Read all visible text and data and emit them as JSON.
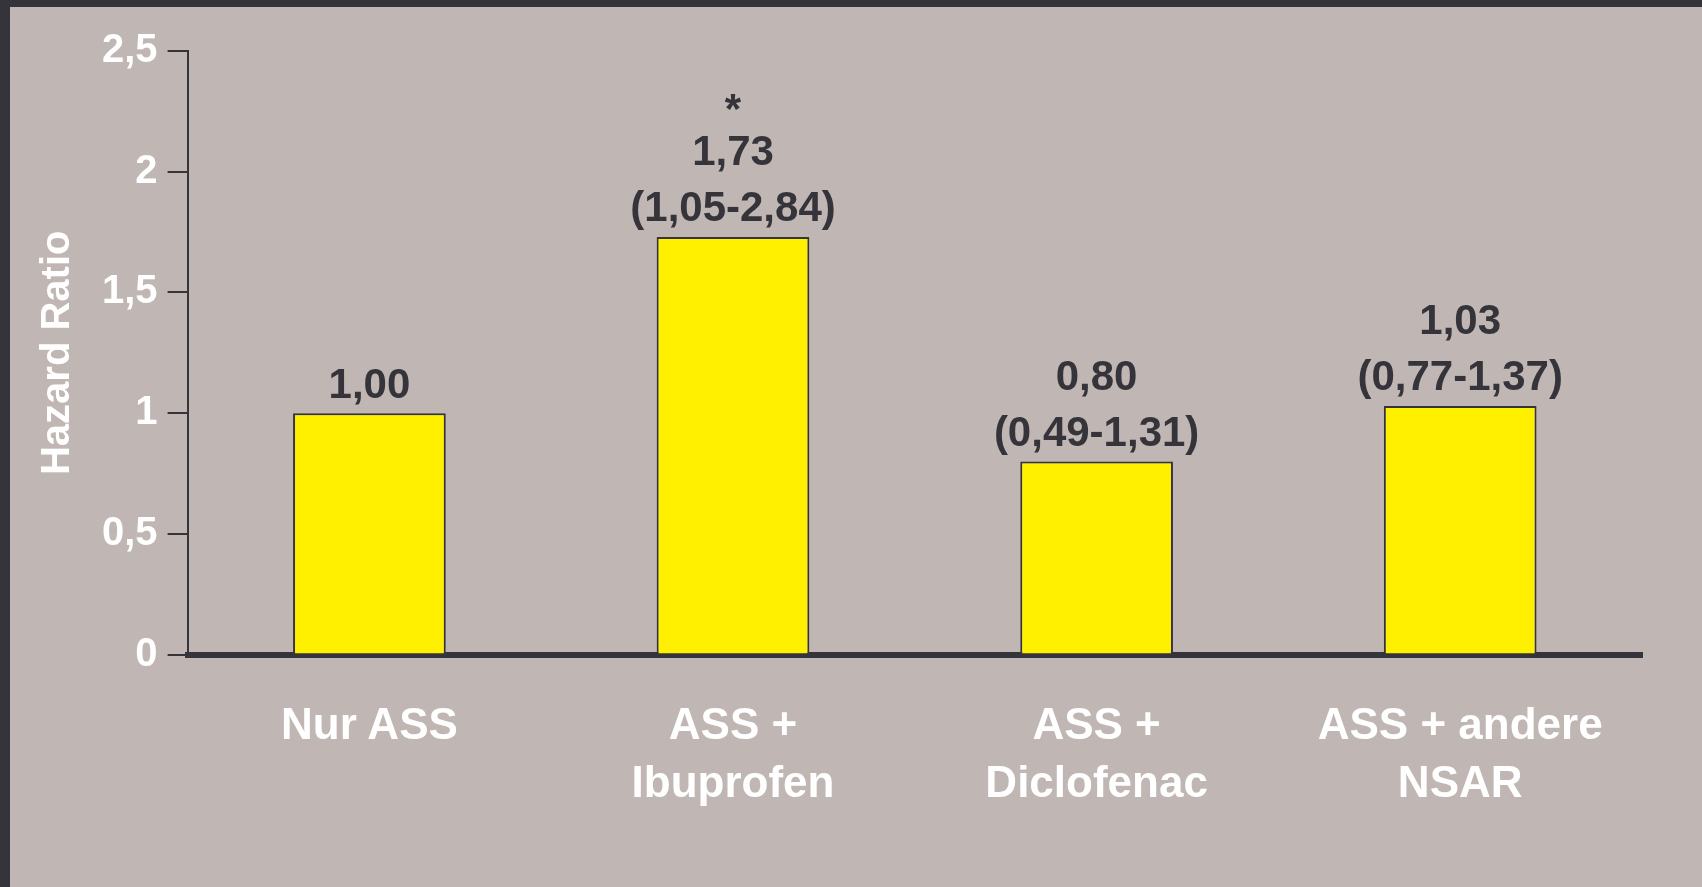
{
  "chart_data": {
    "type": "bar",
    "ylabel": "Hazard Ratio",
    "categories": [
      "Nur ASS",
      "ASS + Ibuprofen",
      "ASS + Diclofenac",
      "ASS + andere NSAR"
    ],
    "values": [
      1.0,
      1.73,
      0.8,
      1.03
    ],
    "color": "#fff000",
    "value_labels": [
      "1,00",
      "1,73",
      "0,80",
      "1,03"
    ],
    "annotations": [
      {
        "text": "(1,05-2,84)",
        "x": "ASS + Ibuprofen",
        "y": 1.73
      },
      {
        "text": "(0,49-1,31)",
        "x": "ASS + Diclofenac",
        "y": 0.8
      },
      {
        "text": "(0,77-1,37)",
        "x": "ASS + andere NSAR",
        "y": 1.03
      },
      "*"
    ],
    "ylim": [
      0,
      2.5
    ],
    "yticks": [
      0,
      {
        "value": 0.5,
        "label": "0,5"
      },
      1,
      {
        "value": 1.5,
        "label": "1,5"
      },
      2,
      {
        "value": 2.5,
        "label": "2,5"
      }
    ],
    "grid": false,
    "legend": false
  }
}
